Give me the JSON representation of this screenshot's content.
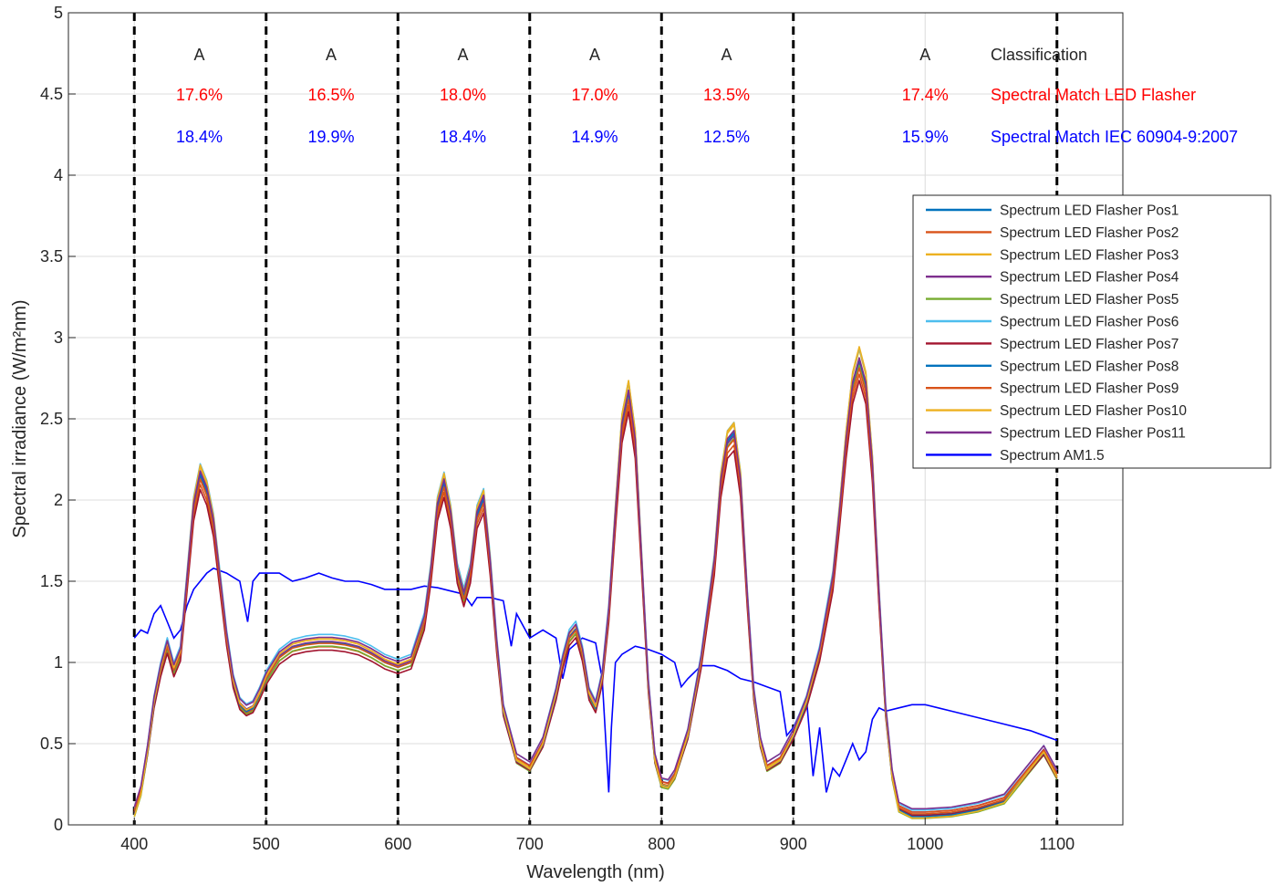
{
  "chart_data": {
    "type": "line",
    "xlabel": "Wavelength (nm)",
    "ylabel": "Spectral irradiance (W/m²nm)",
    "xlim": [
      350,
      1150
    ],
    "ylim": [
      0,
      5
    ],
    "xticks": [
      "400",
      "500",
      "600",
      "700",
      "800",
      "900",
      "1000",
      "1100"
    ],
    "yticks": [
      "0",
      "0.5",
      "1",
      "1.5",
      "2",
      "2.5",
      "3",
      "3.5",
      "4",
      "4.5",
      "5"
    ],
    "grid": true,
    "legend_position": "right",
    "band_boundaries": [
      400,
      500,
      600,
      700,
      800,
      900,
      1100
    ],
    "bands": [
      {
        "range": [
          400,
          500
        ],
        "classification": "A",
        "match_led": "17.6%",
        "match_iec": "18.4%"
      },
      {
        "range": [
          500,
          600
        ],
        "classification": "A",
        "match_led": "16.5%",
        "match_iec": "19.9%"
      },
      {
        "range": [
          600,
          700
        ],
        "classification": "A",
        "match_led": "18.0%",
        "match_iec": "18.4%"
      },
      {
        "range": [
          700,
          800
        ],
        "classification": "A",
        "match_led": "17.0%",
        "match_iec": "14.9%"
      },
      {
        "range": [
          800,
          900
        ],
        "classification": "A",
        "match_led": "13.5%",
        "match_iec": "12.5%"
      },
      {
        "range": [
          900,
          1100
        ],
        "classification": "A",
        "match_led": "17.4%",
        "match_iec": "15.9%"
      }
    ],
    "row_labels": {
      "classification": "Classification",
      "match_led": "Spectral Match LED Flasher",
      "match_iec": "Spectral Match IEC 60904-9:2007"
    },
    "label_colors": {
      "classification": "#262626",
      "match_led": "#ff0000",
      "match_iec": "#0000ff"
    },
    "led_x": [
      400,
      405,
      410,
      415,
      420,
      425,
      430,
      435,
      440,
      445,
      450,
      455,
      460,
      465,
      470,
      475,
      480,
      485,
      490,
      495,
      500,
      510,
      520,
      530,
      540,
      550,
      560,
      570,
      580,
      590,
      600,
      610,
      620,
      625,
      630,
      635,
      640,
      645,
      650,
      655,
      660,
      665,
      670,
      675,
      680,
      690,
      700,
      710,
      720,
      725,
      730,
      735,
      740,
      745,
      750,
      755,
      760,
      765,
      770,
      775,
      780,
      785,
      790,
      795,
      800,
      805,
      810,
      820,
      830,
      840,
      845,
      850,
      855,
      860,
      865,
      870,
      875,
      880,
      890,
      900,
      910,
      920,
      930,
      935,
      940,
      945,
      950,
      955,
      960,
      965,
      970,
      975,
      980,
      990,
      1000,
      1020,
      1040,
      1060,
      1070,
      1080,
      1090,
      1100
    ],
    "led_base": [
      0.07,
      0.2,
      0.45,
      0.75,
      0.95,
      1.1,
      0.95,
      1.05,
      1.5,
      1.95,
      2.15,
      2.05,
      1.85,
      1.5,
      1.15,
      0.88,
      0.74,
      0.7,
      0.72,
      0.8,
      0.9,
      1.03,
      1.09,
      1.11,
      1.12,
      1.12,
      1.11,
      1.09,
      1.05,
      1.0,
      0.97,
      1.0,
      1.25,
      1.55,
      1.95,
      2.1,
      1.9,
      1.55,
      1.4,
      1.55,
      1.9,
      2.0,
      1.6,
      1.1,
      0.7,
      0.4,
      0.35,
      0.5,
      0.8,
      1.0,
      1.15,
      1.2,
      1.05,
      0.8,
      0.72,
      0.9,
      1.3,
      1.9,
      2.45,
      2.65,
      2.35,
      1.6,
      0.85,
      0.4,
      0.25,
      0.24,
      0.3,
      0.55,
      1.0,
      1.6,
      2.1,
      2.35,
      2.4,
      2.1,
      1.4,
      0.8,
      0.5,
      0.35,
      0.4,
      0.55,
      0.75,
      1.05,
      1.5,
      1.9,
      2.35,
      2.7,
      2.85,
      2.7,
      2.2,
      1.4,
      0.7,
      0.3,
      0.1,
      0.06,
      0.06,
      0.07,
      0.1,
      0.15,
      0.25,
      0.35,
      0.45,
      0.3
    ],
    "am15": {
      "x": [
        400,
        405,
        410,
        415,
        420,
        425,
        430,
        435,
        440,
        445,
        450,
        455,
        460,
        470,
        480,
        486,
        490,
        495,
        500,
        510,
        520,
        530,
        540,
        550,
        560,
        570,
        580,
        590,
        600,
        610,
        620,
        630,
        640,
        650,
        656,
        660,
        670,
        680,
        686,
        690,
        700,
        710,
        720,
        725,
        730,
        740,
        750,
        755,
        760,
        762,
        765,
        770,
        780,
        790,
        800,
        810,
        815,
        820,
        830,
        840,
        850,
        860,
        870,
        880,
        890,
        895,
        900,
        910,
        915,
        920,
        925,
        930,
        935,
        940,
        945,
        950,
        955,
        960,
        965,
        970,
        980,
        990,
        1000,
        1010,
        1020,
        1040,
        1060,
        1080,
        1100
      ],
      "y": [
        1.15,
        1.2,
        1.18,
        1.3,
        1.35,
        1.25,
        1.15,
        1.2,
        1.35,
        1.45,
        1.5,
        1.55,
        1.58,
        1.55,
        1.5,
        1.25,
        1.5,
        1.55,
        1.55,
        1.55,
        1.5,
        1.52,
        1.55,
        1.52,
        1.5,
        1.5,
        1.48,
        1.45,
        1.45,
        1.45,
        1.47,
        1.46,
        1.44,
        1.42,
        1.35,
        1.4,
        1.4,
        1.38,
        1.1,
        1.3,
        1.15,
        1.2,
        1.15,
        0.9,
        1.08,
        1.15,
        1.12,
        0.9,
        0.2,
        0.6,
        1.0,
        1.05,
        1.1,
        1.08,
        1.05,
        1.0,
        0.85,
        0.9,
        0.98,
        0.98,
        0.95,
        0.9,
        0.88,
        0.85,
        0.82,
        0.55,
        0.6,
        0.78,
        0.3,
        0.6,
        0.2,
        0.35,
        0.3,
        0.4,
        0.5,
        0.4,
        0.45,
        0.65,
        0.72,
        0.7,
        0.72,
        0.74,
        0.74,
        0.72,
        0.7,
        0.66,
        0.62,
        0.58,
        0.52
      ]
    },
    "series": [
      {
        "name": "Spectrum LED Flasher Pos1",
        "color": "#0072bd",
        "scale": 1.0,
        "offset": 0.0
      },
      {
        "name": "Spectrum LED Flasher Pos2",
        "color": "#d95319",
        "scale": 0.97,
        "offset": 0.01
      },
      {
        "name": "Spectrum LED Flasher Pos3",
        "color": "#edb120",
        "scale": 1.03,
        "offset": -0.01
      },
      {
        "name": "Spectrum LED Flasher Pos4",
        "color": "#7e2f8e",
        "scale": 0.99,
        "offset": 0.02
      },
      {
        "name": "Spectrum LED Flasher Pos5",
        "color": "#77ac30",
        "scale": 1.0,
        "offset": -0.02
      },
      {
        "name": "Spectrum LED Flasher Pos6",
        "color": "#4dbeee",
        "scale": 1.02,
        "offset": 0.03
      },
      {
        "name": "Spectrum LED Flasher Pos7",
        "color": "#a2142f",
        "scale": 0.96,
        "offset": 0.0
      },
      {
        "name": "Spectrum LED Flasher Pos8",
        "color": "#0072bd",
        "scale": 1.01,
        "offset": -0.01
      },
      {
        "name": "Spectrum LED Flasher Pos9",
        "color": "#d95319",
        "scale": 0.98,
        "offset": 0.02
      },
      {
        "name": "Spectrum LED Flasher Pos10",
        "color": "#edb120",
        "scale": 1.04,
        "offset": -0.02
      },
      {
        "name": "Spectrum LED Flasher Pos11",
        "color": "#7e2f8e",
        "scale": 0.995,
        "offset": 0.04
      },
      {
        "name": "Spectrum AM1.5",
        "color": "#0000ff",
        "scale": 1.0,
        "offset": 0.0
      }
    ]
  }
}
